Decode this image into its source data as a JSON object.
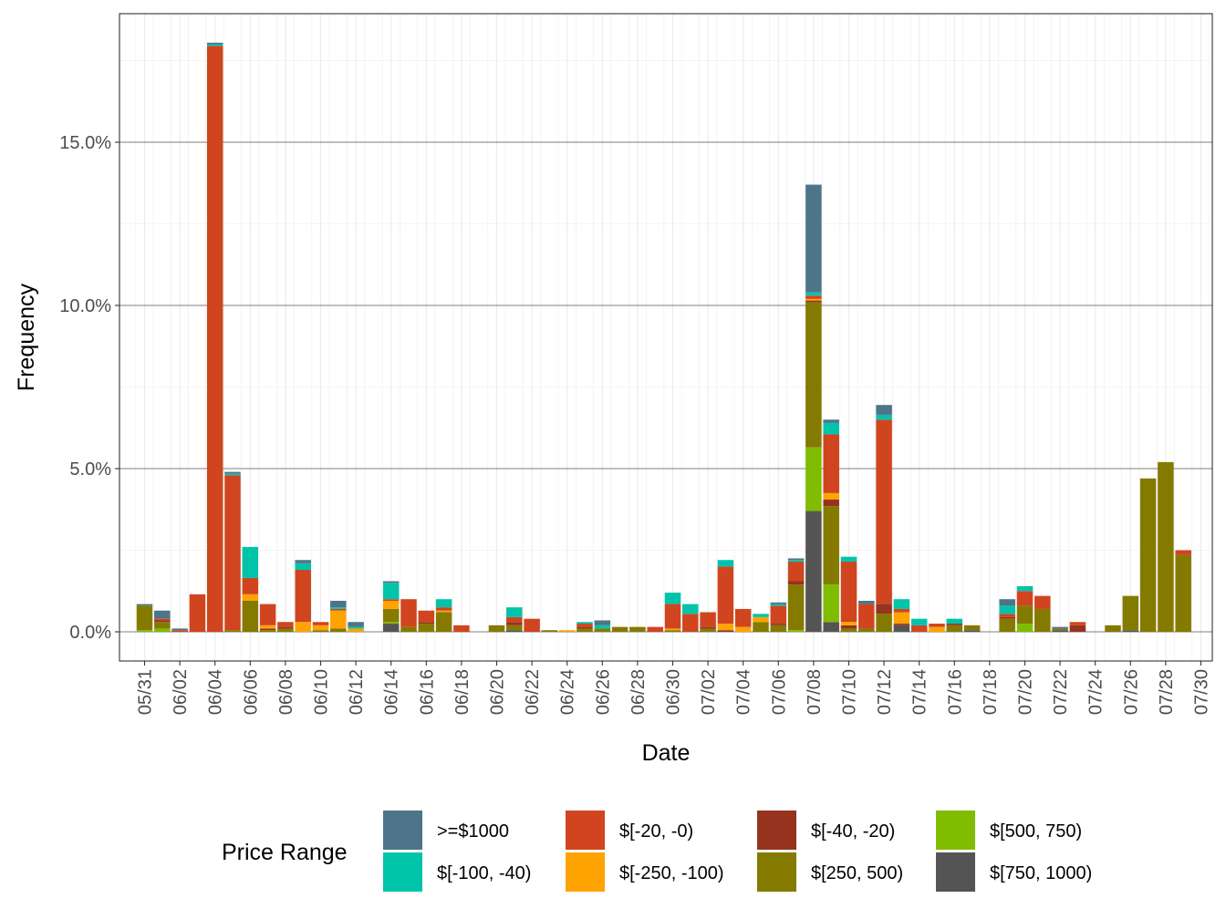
{
  "chart_data": {
    "type": "bar",
    "stacked": true,
    "xlabel": "Date",
    "ylabel": "Frequency",
    "ylim": [
      -0.9,
      18.1
    ],
    "y_ticks": [
      0,
      5,
      10,
      15
    ],
    "y_tick_labels": [
      "0.0%",
      "5.0%",
      "10.0%",
      "15.0%"
    ],
    "x_tick_labels": [
      "05/31",
      "06/02",
      "06/04",
      "06/06",
      "06/08",
      "06/10",
      "06/12",
      "06/14",
      "06/16",
      "06/18",
      "06/20",
      "06/22",
      "06/24",
      "06/26",
      "06/28",
      "06/30",
      "07/02",
      "07/04",
      "07/06",
      "07/08",
      "07/10",
      "07/12",
      "07/14",
      "07/16",
      "07/18",
      "07/20",
      "07/22",
      "07/24",
      "07/26",
      "07/28",
      "07/30"
    ],
    "grid": true,
    "legend_position": "bottom",
    "legend_title": "Price Range",
    "series": [
      {
        "name": ">=$1000",
        "color": "#4e7489"
      },
      {
        "name": "$[-100, -40)",
        "color": "#00c4aa"
      },
      {
        "name": "$[-20, -0)",
        "color": "#d0451f"
      },
      {
        "name": "$[-250, -100)",
        "color": "#ffa300"
      },
      {
        "name": "$[-40, -20)",
        "color": "#95331f"
      },
      {
        "name": "$[250, 500)",
        "color": "#857a00"
      },
      {
        "name": "$[500, 750)",
        "color": "#80bc00"
      },
      {
        "name": "$[750, 1000)",
        "color": "#545454"
      }
    ],
    "stack_order": [
      "$[750, 1000)",
      "$[500, 750)",
      "$[250, 500)",
      "$[-40, -20)",
      "$[-250, -100)",
      "$[-20, -0)",
      "$[-100, -40)",
      ">=$1000"
    ],
    "bars": [
      {
        "date": "05/31",
        "segments": {
          "$[500, 750)": 0.05,
          "$[250, 500)": 0.75,
          ">=$1000": 0.05
        }
      },
      {
        "date": "06/01",
        "segments": {
          "$[500, 750)": 0.1,
          "$[250, 500)": 0.2,
          "$[-40, -20)": 0.05,
          "$[-20, -0)": 0.05,
          ">=$1000": 0.25
        }
      },
      {
        "date": "06/02",
        "segments": {
          "$[-20, -0)": 0.05,
          ">=$1000": 0.05
        }
      },
      {
        "date": "06/03",
        "segments": {
          "$[-20, -0)": 1.15
        }
      },
      {
        "date": "06/04",
        "segments": {
          "$[-20, -0)": 17.95,
          "$[-100, -40)": 0.05,
          ">=$1000": 0.05
        }
      },
      {
        "date": "06/05",
        "segments": {
          "$[250, 500)": 0.05,
          "$[-20, -0)": 4.75,
          "$[-100, -40)": 0.05,
          ">=$1000": 0.05
        }
      },
      {
        "date": "06/06",
        "segments": {
          "$[250, 500)": 0.95,
          "$[-250, -100)": 0.2,
          "$[-20, -0)": 0.5,
          "$[-100, -40)": 0.95
        }
      },
      {
        "date": "06/07",
        "segments": {
          "$[250, 500)": 0.05,
          "$[-250, -100)": 0.1,
          "$[-40, -20)": 0.05,
          "$[-20, -0)": 0.65
        }
      },
      {
        "date": "06/08",
        "segments": {
          "$[250, 500)": 0.1,
          "$[-40, -20)": 0.05,
          "$[-20, -0)": 0.15
        }
      },
      {
        "date": "06/09",
        "segments": {
          "$[-250, -100)": 0.3,
          "$[-20, -0)": 1.6,
          "$[-100, -40)": 0.2,
          ">=$1000": 0.1
        }
      },
      {
        "date": "06/10",
        "segments": {
          "$[250, 500)": 0.05,
          "$[-250, -100)": 0.15,
          "$[-20, -0)": 0.1
        }
      },
      {
        "date": "06/11",
        "segments": {
          "$[250, 500)": 0.1,
          "$[-250, -100)": 0.55,
          "$[-20, -0)": 0.05,
          "$[-100, -40)": 0.05,
          ">=$1000": 0.2
        }
      },
      {
        "date": "06/12",
        "segments": {
          "$[-250, -100)": 0.1,
          "$[-100, -40)": 0.05,
          ">=$1000": 0.15
        }
      },
      {
        "date": "06/13",
        "segments": {}
      },
      {
        "date": "06/14",
        "segments": {
          "$[750, 1000)": 0.25,
          "$[500, 750)": 0.05,
          "$[250, 500)": 0.4,
          "$[-250, -100)": 0.25,
          "$[-20, -0)": 0.05,
          "$[-100, -40)": 0.5,
          ">=$1000": 0.05
        }
      },
      {
        "date": "06/15",
        "segments": {
          "$[250, 500)": 0.15,
          "$[-20, -0)": 0.85
        }
      },
      {
        "date": "06/16",
        "segments": {
          "$[250, 500)": 0.25,
          "$[-40, -20)": 0.05,
          "$[-20, -0)": 0.35
        }
      },
      {
        "date": "06/17",
        "segments": {
          "$[250, 500)": 0.6,
          "$[-250, -100)": 0.05,
          "$[-20, -0)": 0.1,
          "$[-100, -40)": 0.25
        }
      },
      {
        "date": "06/18",
        "segments": {
          "$[-20, -0)": 0.2
        }
      },
      {
        "date": "06/19",
        "segments": {}
      },
      {
        "date": "06/20",
        "segments": {
          "$[250, 500)": 0.2
        }
      },
      {
        "date": "06/21",
        "segments": {
          "$[750, 1000)": 0.05,
          "$[250, 500)": 0.15,
          "$[-40, -20)": 0.1,
          "$[-20, -0)": 0.15,
          "$[-100, -40)": 0.3
        }
      },
      {
        "date": "06/22",
        "segments": {
          "$[-20, -0)": 0.4
        }
      },
      {
        "date": "06/23",
        "segments": {
          "$[250, 500)": 0.05
        }
      },
      {
        "date": "06/24",
        "segments": {
          "$[-250, -100)": 0.05
        }
      },
      {
        "date": "06/25",
        "segments": {
          "$[250, 500)": 0.1,
          "$[-40, -20)": 0.05,
          "$[-20, -0)": 0.1,
          "$[-100, -40)": 0.05
        }
      },
      {
        "date": "06/26",
        "segments": {
          "$[250, 500)": 0.1,
          "$[-100, -40)": 0.1,
          ">=$1000": 0.15
        }
      },
      {
        "date": "06/27",
        "segments": {
          "$[250, 500)": 0.15
        }
      },
      {
        "date": "06/28",
        "segments": {
          "$[250, 500)": 0.15
        }
      },
      {
        "date": "06/29",
        "segments": {
          "$[-20, -0)": 0.15
        }
      },
      {
        "date": "06/30",
        "segments": {
          "$[250, 500)": 0.05,
          "$[-250, -100)": 0.05,
          "$[-20, -0)": 0.75,
          "$[-100, -40)": 0.35
        }
      },
      {
        "date": "07/01",
        "segments": {
          "$[-20, -0)": 0.55,
          "$[-100, -40)": 0.3
        }
      },
      {
        "date": "07/02",
        "segments": {
          "$[250, 500)": 0.1,
          "$[-40, -20)": 0.05,
          "$[-20, -0)": 0.45
        }
      },
      {
        "date": "07/03",
        "segments": {
          "$[-40, -20)": 0.05,
          "$[-250, -100)": 0.2,
          "$[-20, -0)": 1.75,
          "$[-100, -40)": 0.2
        }
      },
      {
        "date": "07/04",
        "segments": {
          "$[-250, -100)": 0.15,
          "$[-20, -0)": 0.55
        }
      },
      {
        "date": "07/05",
        "segments": {
          "$[250, 500)": 0.3,
          "$[-250, -100)": 0.15,
          "$[-100, -40)": 0.1
        }
      },
      {
        "date": "07/06",
        "segments": {
          "$[250, 500)": 0.2,
          "$[-40, -20)": 0.05,
          "$[-20, -0)": 0.55,
          "$[-100, -40)": 0.05,
          ">=$1000": 0.05
        }
      },
      {
        "date": "07/07",
        "segments": {
          "$[500, 750)": 0.05,
          "$[250, 500)": 1.4,
          "$[-40, -20)": 0.1,
          "$[-20, -0)": 0.6,
          "$[-100, -40)": 0.05,
          ">=$1000": 0.05
        }
      },
      {
        "date": "07/08",
        "segments": {
          "$[750, 1000)": 3.7,
          "$[500, 750)": 1.95,
          "$[250, 500)": 4.45,
          "$[-40, -20)": 0.05,
          "$[-250, -100)": 0.05,
          "$[-20, -0)": 0.1,
          "$[-100, -40)": 0.1,
          ">=$1000": 3.3
        }
      },
      {
        "date": "07/09",
        "segments": {
          "$[750, 1000)": 0.3,
          "$[500, 750)": 1.15,
          "$[250, 500)": 2.4,
          "$[-40, -20)": 0.2,
          "$[-250, -100)": 0.2,
          "$[-20, -0)": 1.8,
          "$[-100, -40)": 0.35,
          ">=$1000": 0.1
        }
      },
      {
        "date": "07/10",
        "segments": {
          "$[250, 500)": 0.1,
          "$[-40, -20)": 0.1,
          "$[-250, -100)": 0.1,
          "$[-20, -0)": 1.85,
          "$[-100, -40)": 0.15
        }
      },
      {
        "date": "07/11",
        "segments": {
          "$[250, 500)": 0.1,
          "$[-20, -0)": 0.75,
          ">=$1000": 0.1
        }
      },
      {
        "date": "07/12",
        "segments": {
          "$[250, 500)": 0.55,
          "$[-40, -20)": 0.3,
          "$[-20, -0)": 5.65,
          "$[-100, -40)": 0.15,
          ">=$1000": 0.3
        }
      },
      {
        "date": "07/13",
        "segments": {
          "$[750, 1000)": 0.2,
          "$[-250, -100)": 0.35,
          "$[-40, -20)": 0.05,
          "$[-20, -0)": 0.1,
          "$[-100, -40)": 0.3
        }
      },
      {
        "date": "07/14",
        "segments": {
          "$[-20, -0)": 0.2,
          "$[-100, -40)": 0.2
        }
      },
      {
        "date": "07/15",
        "segments": {
          "$[-250, -100)": 0.15,
          "$[-20, -0)": 0.1
        }
      },
      {
        "date": "07/16",
        "segments": {
          "$[250, 500)": 0.2,
          "$[-40, -20)": 0.05,
          "$[-100, -40)": 0.15
        }
      },
      {
        "date": "07/17",
        "segments": {
          "$[750, 1000)": 0.05,
          "$[250, 500)": 0.15
        }
      },
      {
        "date": "07/18",
        "segments": {}
      },
      {
        "date": "07/19",
        "segments": {
          "$[250, 500)": 0.4,
          "$[-40, -20)": 0.05,
          "$[-20, -0)": 0.1,
          "$[-100, -40)": 0.25,
          ">=$1000": 0.2
        }
      },
      {
        "date": "07/20",
        "segments": {
          "$[500, 750)": 0.25,
          "$[250, 500)": 0.55,
          "$[-20, -0)": 0.45,
          "$[-100, -40)": 0.15
        }
      },
      {
        "date": "07/21",
        "segments": {
          "$[250, 500)": 0.7,
          "$[-20, -0)": 0.4
        }
      },
      {
        "date": "07/22",
        "segments": {
          "$[750, 1000)": 0.05,
          "$[250, 500)": 0.05,
          ">=$1000": 0.05
        }
      },
      {
        "date": "07/23",
        "segments": {
          "$[-40, -20)": 0.2,
          "$[-20, -0)": 0.1
        }
      },
      {
        "date": "07/24",
        "segments": {}
      },
      {
        "date": "07/25",
        "segments": {
          "$[250, 500)": 0.2
        }
      },
      {
        "date": "07/26",
        "segments": {
          "$[750, 1000)": 0.05,
          "$[250, 500)": 1.05
        }
      },
      {
        "date": "07/27",
        "segments": {
          "$[250, 500)": 4.7
        }
      },
      {
        "date": "07/28",
        "segments": {
          "$[250, 500)": 5.2
        }
      },
      {
        "date": "07/29",
        "segments": {
          "$[250, 500)": 2.35,
          "$[-20, -0)": 0.15
        }
      }
    ]
  }
}
